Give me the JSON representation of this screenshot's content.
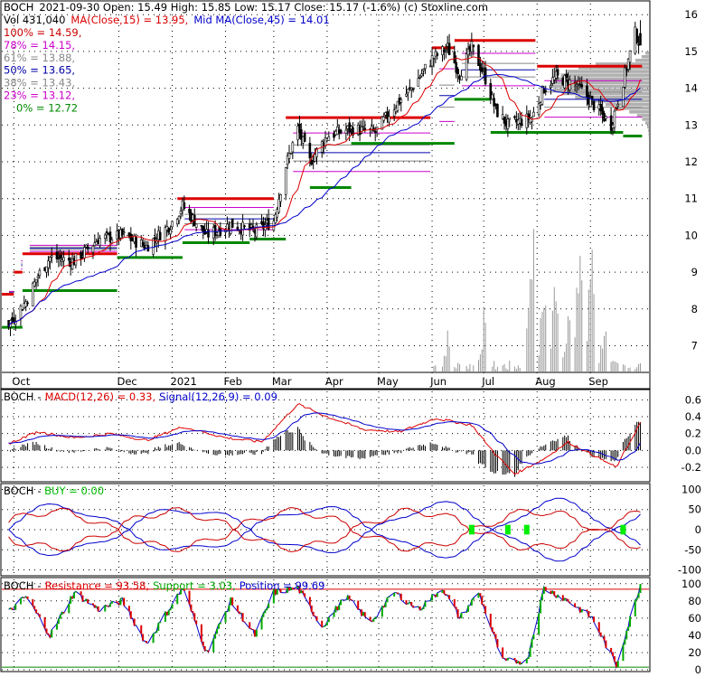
{
  "header": {
    "ticker": "BOCH",
    "quote_line": "2021-09-30 Open: 15.49  High: 15.85  Low: 15.17  Close: 15.17 (-1.6%)  (c) Stoxline.com",
    "vol_label": "Vol 431,040",
    "ma15_label": "MA(Close,15) = 13.95,",
    "ma45_label": "Mid MA(Close,45) = 14.01"
  },
  "fib_levels": [
    {
      "label": "100% = 14.59,",
      "color": "#cc0000"
    },
    {
      "label": "78% = 14.15,",
      "color": "#cc00cc"
    },
    {
      "label": "61% = 13.88,",
      "color": "#888888"
    },
    {
      "label": "50% = 13.65,",
      "color": "#0000aa"
    },
    {
      "label": "38% = 13.43,",
      "color": "#888888"
    },
    {
      "label": "23% = 13.12,",
      "color": "#cc00cc"
    },
    {
      "label": "0% = 12.72",
      "color": "#008800"
    }
  ],
  "macd_panel": {
    "ticker": "BOCH",
    "macd_label": "MACD(12,26) = 0.33,",
    "signal_label": "Signal(12,26,9) = 0.09",
    "y_ticks": [
      "0.6",
      "0.4",
      "0.2",
      "0.0",
      "-0.2"
    ]
  },
  "buy_panel": {
    "ticker": "BOCH",
    "buy_label": "BUY = 0.00",
    "y_ticks": [
      "100",
      "50",
      "0",
      "-50",
      "-100"
    ]
  },
  "rsp_panel": {
    "ticker": "BOCH",
    "resistance_label": "Resistance = 93.58,",
    "support_label": "Support = 3.03,",
    "position_label": "Position = 99.69",
    "y_ticks": [
      "100",
      "80",
      "60",
      "40",
      "20",
      "0"
    ]
  },
  "colors": {
    "candle": "#000000",
    "ma15": "#dd0000",
    "ma45": "#0000cc",
    "resistance": "#dd0000",
    "support": "#008800",
    "grid": "#000000",
    "volume_profile": "#b0b0b0",
    "buy_marker": "#00ee00"
  },
  "chart_data": [
    {
      "type": "candlestick",
      "title": "BOCH 2021-09-30",
      "x_labels": [
        "Oct",
        "Dec",
        "2021",
        "Feb",
        "Mar",
        "Apr",
        "May",
        "Jun",
        "Jul",
        "Aug",
        "Sep"
      ],
      "x_label_dates": [
        "2020-10-01",
        "2020-12-01",
        "2021-01-01",
        "2021-02-01",
        "2021-03-01",
        "2021-04-01",
        "2021-05-01",
        "2021-06-01",
        "2021-07-01",
        "2021-08-01",
        "2021-09-01"
      ],
      "y_ticks": [
        7,
        8,
        9,
        10,
        11,
        12,
        13,
        14,
        15,
        16
      ],
      "ylim": [
        6.3,
        16.3
      ],
      "x_range": [
        "2020-09-24",
        "2021-10-05"
      ],
      "grid": true,
      "ohlc_last": {
        "date": "2021-09-30",
        "open": 15.49,
        "high": 15.85,
        "low": 15.17,
        "close": 15.17
      },
      "close_anchors": [
        [
          "2020-09-28",
          7.6
        ],
        [
          "2020-10-08",
          8.2
        ],
        [
          "2020-10-15",
          8.9
        ],
        [
          "2020-10-22",
          9.4
        ],
        [
          "2020-11-05",
          9.3
        ],
        [
          "2020-11-19",
          9.9
        ],
        [
          "2020-12-03",
          10.0
        ],
        [
          "2020-12-17",
          9.7
        ],
        [
          "2020-12-31",
          10.3
        ],
        [
          "2021-01-07",
          10.8
        ],
        [
          "2021-01-21",
          10.0
        ],
        [
          "2021-02-04",
          10.3
        ],
        [
          "2021-02-18",
          10.1
        ],
        [
          "2021-03-01",
          10.4
        ],
        [
          "2021-03-08",
          11.9
        ],
        [
          "2021-03-15",
          12.9
        ],
        [
          "2021-03-22",
          12.0
        ],
        [
          "2021-04-01",
          12.7
        ],
        [
          "2021-04-15",
          12.9
        ],
        [
          "2021-04-29",
          12.8
        ],
        [
          "2021-05-10",
          13.5
        ],
        [
          "2021-05-20",
          14.0
        ],
        [
          "2021-06-01",
          14.8
        ],
        [
          "2021-06-10",
          15.1
        ],
        [
          "2021-06-17",
          14.4
        ],
        [
          "2021-06-24",
          15.1
        ],
        [
          "2021-07-01",
          14.4
        ],
        [
          "2021-07-08",
          13.4
        ],
        [
          "2021-07-15",
          13.0
        ],
        [
          "2021-07-29",
          13.2
        ],
        [
          "2021-08-05",
          14.0
        ],
        [
          "2021-08-12",
          14.3
        ],
        [
          "2021-08-24",
          14.1
        ],
        [
          "2021-09-02",
          13.6
        ],
        [
          "2021-09-13",
          13.0
        ],
        [
          "2021-09-20",
          14.2
        ],
        [
          "2021-09-27",
          15.5
        ],
        [
          "2021-09-30",
          15.17
        ]
      ],
      "resistance_segments": [
        [
          "2020-09-24",
          "2020-10-01",
          8.4
        ],
        [
          "2020-10-01",
          "2020-10-06",
          9.0
        ],
        [
          "2020-10-06",
          "2020-11-30",
          9.5
        ],
        [
          "2021-01-04",
          "2021-03-01",
          11.0
        ],
        [
          "2021-03-08",
          "2021-05-31",
          13.2
        ],
        [
          "2021-06-01",
          "2021-06-14",
          15.1
        ],
        [
          "2021-06-14",
          "2021-07-31",
          15.3
        ],
        [
          "2021-08-01",
          "2021-10-01",
          14.6
        ]
      ],
      "support_segments": [
        [
          "2020-09-24",
          "2020-10-06",
          7.5
        ],
        [
          "2020-10-06",
          "2020-11-30",
          8.5
        ],
        [
          "2020-11-30",
          "2021-01-07",
          9.4
        ],
        [
          "2021-01-07",
          "2021-02-15",
          9.8
        ],
        [
          "2021-02-15",
          "2021-03-08",
          9.9
        ],
        [
          "2021-03-22",
          "2021-04-15",
          11.3
        ],
        [
          "2021-04-15",
          "2021-06-14",
          12.5
        ],
        [
          "2021-06-14",
          "2021-07-05",
          13.7
        ],
        [
          "2021-07-05",
          "2021-09-20",
          12.8
        ],
        [
          "2021-09-20",
          "2021-10-01",
          12.7
        ]
      ],
      "volume_spikes": [
        [
          "2021-06-10",
          1.0
        ],
        [
          "2021-07-01",
          1.5
        ],
        [
          "2021-07-29",
          4.5
        ],
        [
          "2021-08-05",
          2.6
        ],
        [
          "2021-08-12",
          3.2
        ],
        [
          "2021-08-19",
          1.9
        ],
        [
          "2021-08-26",
          3.9
        ],
        [
          "2021-09-02",
          4.1
        ],
        [
          "2021-09-09",
          1.4
        ]
      ]
    },
    {
      "type": "line",
      "title": "MACD(12,26)",
      "ylim": [
        -0.35,
        0.7
      ],
      "y_ticks": [
        0.6,
        0.4,
        0.2,
        0.0,
        -0.2
      ],
      "series": [
        {
          "name": "MACD(12,26)",
          "last": 0.33
        },
        {
          "name": "Signal(12,26,9)",
          "last": 0.09
        }
      ],
      "macd_anchors": [
        [
          "2020-09-24",
          0.05
        ],
        [
          "2020-10-15",
          0.22
        ],
        [
          "2020-11-05",
          0.15
        ],
        [
          "2020-11-26",
          0.2
        ],
        [
          "2020-12-17",
          0.12
        ],
        [
          "2021-01-07",
          0.28
        ],
        [
          "2021-02-01",
          0.15
        ],
        [
          "2021-02-22",
          0.1
        ],
        [
          "2021-03-15",
          0.55
        ],
        [
          "2021-04-01",
          0.4
        ],
        [
          "2021-04-22",
          0.25
        ],
        [
          "2021-05-13",
          0.22
        ],
        [
          "2021-06-03",
          0.38
        ],
        [
          "2021-06-24",
          0.3
        ],
        [
          "2021-07-08",
          -0.05
        ],
        [
          "2021-07-19",
          -0.28
        ],
        [
          "2021-08-05",
          -0.1
        ],
        [
          "2021-08-19",
          0.1
        ],
        [
          "2021-09-02",
          -0.05
        ],
        [
          "2021-09-16",
          -0.2
        ],
        [
          "2021-09-30",
          0.33
        ]
      ]
    },
    {
      "type": "line",
      "title": "BUY",
      "ylim": [
        -110,
        110
      ],
      "y_ticks": [
        100,
        50,
        0,
        -50,
        -100
      ],
      "buy_value": 0.0,
      "buy_markers": [
        "2021-06-24",
        "2021-07-15",
        "2021-07-26",
        "2021-09-20"
      ]
    },
    {
      "type": "line",
      "title": "Resistance / Support / Position",
      "ylim": [
        0,
        105
      ],
      "y_ticks": [
        100,
        80,
        60,
        40,
        20,
        0
      ],
      "series": [
        {
          "name": "Resistance",
          "last": 93.58
        },
        {
          "name": "Support",
          "last": 3.03
        },
        {
          "name": "Position",
          "last": 99.69
        }
      ],
      "position_anchors": [
        [
          "2020-09-24",
          60
        ],
        [
          "2020-10-08",
          85
        ],
        [
          "2020-10-22",
          40
        ],
        [
          "2020-11-05",
          90
        ],
        [
          "2020-11-19",
          70
        ],
        [
          "2020-12-03",
          80
        ],
        [
          "2020-12-17",
          30
        ],
        [
          "2021-01-07",
          95
        ],
        [
          "2021-01-21",
          20
        ],
        [
          "2021-02-04",
          80
        ],
        [
          "2021-02-18",
          40
        ],
        [
          "2021-03-01",
          90
        ],
        [
          "2021-03-15",
          95
        ],
        [
          "2021-03-29",
          50
        ],
        [
          "2021-04-12",
          85
        ],
        [
          "2021-04-26",
          55
        ],
        [
          "2021-05-10",
          90
        ],
        [
          "2021-05-24",
          70
        ],
        [
          "2021-06-07",
          95
        ],
        [
          "2021-06-17",
          60
        ],
        [
          "2021-06-28",
          90
        ],
        [
          "2021-07-12",
          10
        ],
        [
          "2021-07-26",
          10
        ],
        [
          "2021-08-05",
          95
        ],
        [
          "2021-08-19",
          80
        ],
        [
          "2021-09-02",
          60
        ],
        [
          "2021-09-16",
          5
        ],
        [
          "2021-09-30",
          99.69
        ]
      ]
    }
  ]
}
